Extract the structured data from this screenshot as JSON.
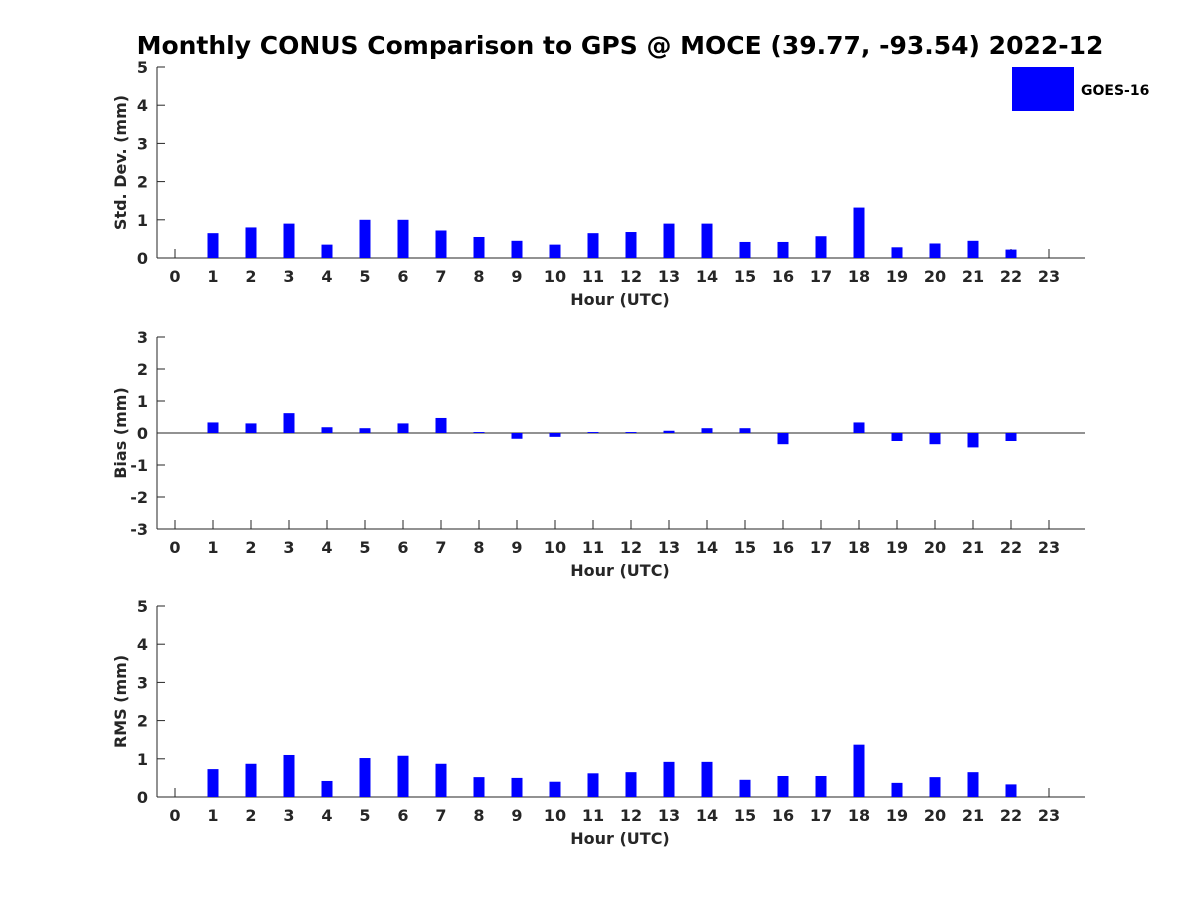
{
  "title": "Monthly CONUS Comparison to GPS @ MOCE (39.77, -93.54) 2022-12",
  "colors": {
    "bar": "#0000ff",
    "axis": "#262626"
  },
  "chart_data": [
    {
      "id": "std",
      "type": "bar",
      "title": "Monthly CONUS Comparison to GPS @ MOCE (39.77, -93.54) 2022-12",
      "xlabel": "Hour (UTC)",
      "ylabel": "Std. Dev. (mm)",
      "categories": [
        "0",
        "1",
        "2",
        "3",
        "4",
        "5",
        "6",
        "7",
        "8",
        "9",
        "10",
        "11",
        "12",
        "13",
        "14",
        "15",
        "16",
        "17",
        "18",
        "19",
        "20",
        "21",
        "22",
        "23"
      ],
      "ylim": [
        0,
        5
      ],
      "yticks": [
        "0",
        "1",
        "2",
        "3",
        "4",
        "5"
      ],
      "legend": {
        "label": "GOES-16",
        "placement": "top-right"
      },
      "series": [
        {
          "name": "GOES-16",
          "values": [
            null,
            0.65,
            0.8,
            0.9,
            0.35,
            1.0,
            1.0,
            0.72,
            0.55,
            0.45,
            0.35,
            0.65,
            0.68,
            0.9,
            0.9,
            0.42,
            0.42,
            0.57,
            1.32,
            0.28,
            0.38,
            0.45,
            0.22,
            null
          ]
        }
      ]
    },
    {
      "id": "bias",
      "type": "bar",
      "xlabel": "Hour (UTC)",
      "ylabel": "Bias (mm)",
      "categories": [
        "0",
        "1",
        "2",
        "3",
        "4",
        "5",
        "6",
        "7",
        "8",
        "9",
        "10",
        "11",
        "12",
        "13",
        "14",
        "15",
        "16",
        "17",
        "18",
        "19",
        "20",
        "21",
        "22",
        "23"
      ],
      "ylim": [
        -3,
        3
      ],
      "yticks": [
        "-3",
        "-2",
        "-1",
        "0",
        "1",
        "2",
        "3"
      ],
      "series": [
        {
          "name": "GOES-16",
          "values": [
            null,
            0.33,
            0.3,
            0.62,
            0.18,
            0.15,
            0.3,
            0.47,
            0.03,
            -0.18,
            -0.12,
            0.03,
            0.03,
            0.07,
            0.15,
            0.15,
            -0.35,
            0.0,
            0.33,
            -0.25,
            -0.35,
            -0.45,
            -0.25,
            null
          ]
        }
      ]
    },
    {
      "id": "rms",
      "type": "bar",
      "xlabel": "Hour (UTC)",
      "ylabel": "RMS (mm)",
      "categories": [
        "0",
        "1",
        "2",
        "3",
        "4",
        "5",
        "6",
        "7",
        "8",
        "9",
        "10",
        "11",
        "12",
        "13",
        "14",
        "15",
        "16",
        "17",
        "18",
        "19",
        "20",
        "21",
        "22",
        "23"
      ],
      "ylim": [
        0,
        5
      ],
      "yticks": [
        "0",
        "1",
        "2",
        "3",
        "4",
        "5"
      ],
      "series": [
        {
          "name": "GOES-16",
          "values": [
            null,
            0.73,
            0.87,
            1.1,
            0.42,
            1.02,
            1.08,
            0.87,
            0.52,
            0.5,
            0.4,
            0.62,
            0.65,
            0.92,
            0.92,
            0.45,
            0.55,
            0.55,
            1.37,
            0.37,
            0.52,
            0.65,
            0.33,
            null
          ]
        }
      ]
    }
  ]
}
